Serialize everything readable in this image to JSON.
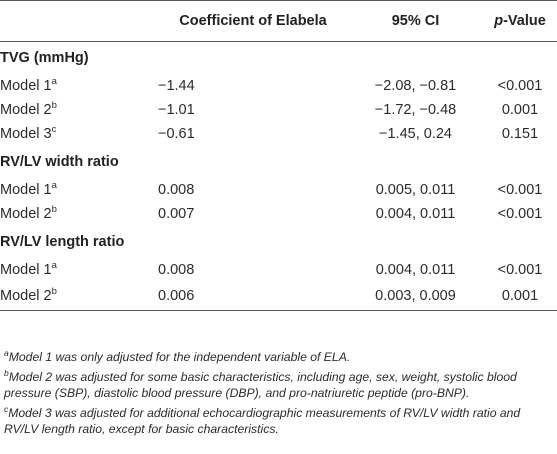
{
  "header": {
    "col0": "",
    "col1": "Coefficient of Elabela",
    "col2": "95% CI",
    "col3_italic": "p",
    "col3_rest": "-Value"
  },
  "sections": [
    {
      "title": "TVG (mmHg)",
      "rows": [
        {
          "model": "Model 1",
          "sup": "a",
          "coef": "−1.44",
          "ci": "−2.08, −0.81",
          "p": "<0.001"
        },
        {
          "model": "Model 2",
          "sup": "b",
          "coef": "−1.01",
          "ci": "−1.72, −0.48",
          "p": "0.001"
        },
        {
          "model": "Model 3",
          "sup": "c",
          "coef": "−0.61",
          "ci": "−1.45, 0.24",
          "p": "0.151"
        }
      ]
    },
    {
      "title": "RV/LV width ratio",
      "rows": [
        {
          "model": "Model 1",
          "sup": "a",
          "coef": "0.008",
          "ci": "0.005, 0.011",
          "p": "<0.001"
        },
        {
          "model": "Model 2",
          "sup": "b",
          "coef": "0.007",
          "ci": "0.004, 0.011",
          "p": "<0.001"
        }
      ]
    },
    {
      "title": "RV/LV length ratio",
      "rows": [
        {
          "model": "Model 1",
          "sup": "a",
          "coef": "0.008",
          "ci": "0.004, 0.011",
          "p": "<0.001"
        },
        {
          "model": "Model 2",
          "sup": "b",
          "coef": "0.006",
          "ci": "0.003, 0.009",
          "p": "0.001"
        }
      ]
    }
  ],
  "footnotes": [
    {
      "mark": "a",
      "text": "Model 1 was only adjusted for the independent variable of ELA."
    },
    {
      "mark": "b",
      "text": "Model 2 was adjusted for some basic characteristics, including age, sex, weight, systolic blood pressure (SBP), diastolic blood pressure (DBP), and pro-natriuretic peptide (pro-BNP)."
    },
    {
      "mark": "c",
      "text": "Model 3 was adjusted for additional echocardiographic measurements of RV/LV width ratio and RV/LV length ratio, except for basic characteristics."
    }
  ]
}
